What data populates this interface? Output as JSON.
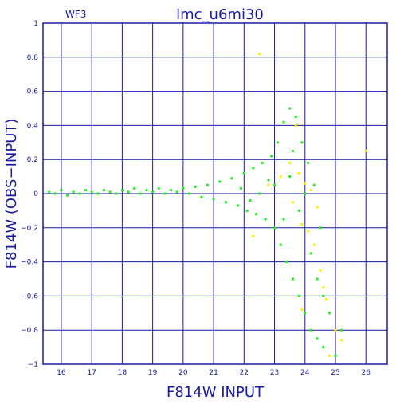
{
  "chart_data": {
    "type": "scatter",
    "title": "lmc_u6mi30",
    "subtitle": "WF3",
    "xlabel": "F814W  INPUT",
    "ylabel": "F814W (OBS−INPUT)",
    "xlim": [
      15.4,
      26.7
    ],
    "ylim": [
      -1,
      1
    ],
    "xticks": [
      "16",
      "17",
      "18",
      "19",
      "20",
      "21",
      "22",
      "23",
      "24",
      "25",
      "26"
    ],
    "yticks": [
      "1",
      "0.8",
      "0.6",
      "0.4",
      "0.2",
      "0",
      "−0.2",
      "−0.4",
      "−0.6",
      "−0.8",
      "−1"
    ],
    "grid": true,
    "colors": {
      "frame": "#1a1aa6",
      "grid": "#1a1aa6",
      "series_primary": "#22ee22",
      "series_secondary": "#ffee00"
    },
    "series": [
      {
        "color": "#22ee22",
        "points": [
          [
            15.6,
            0.01
          ],
          [
            15.8,
            0.0
          ],
          [
            16.0,
            0.02
          ],
          [
            16.2,
            -0.01
          ],
          [
            16.4,
            0.01
          ],
          [
            16.6,
            0.0
          ],
          [
            16.8,
            0.02
          ],
          [
            17.0,
            0.01
          ],
          [
            17.2,
            0.0
          ],
          [
            17.4,
            0.02
          ],
          [
            17.6,
            0.01
          ],
          [
            17.8,
            0.0
          ],
          [
            18.0,
            0.02
          ],
          [
            18.2,
            0.01
          ],
          [
            18.4,
            0.03
          ],
          [
            18.6,
            0.0
          ],
          [
            18.8,
            0.02
          ],
          [
            19.0,
            0.01
          ],
          [
            19.2,
            0.03
          ],
          [
            19.4,
            0.0
          ],
          [
            19.6,
            0.02
          ],
          [
            19.8,
            0.01
          ],
          [
            20.0,
            0.03
          ],
          [
            20.2,
            0.0
          ],
          [
            20.4,
            0.04
          ],
          [
            20.6,
            -0.02
          ],
          [
            20.8,
            0.05
          ],
          [
            21.0,
            -0.03
          ],
          [
            21.2,
            0.07
          ],
          [
            21.4,
            -0.05
          ],
          [
            21.6,
            0.09
          ],
          [
            21.8,
            -0.07
          ],
          [
            22.0,
            0.12
          ],
          [
            22.1,
            -0.1
          ],
          [
            22.3,
            0.15
          ],
          [
            22.4,
            -0.12
          ],
          [
            22.6,
            0.18
          ],
          [
            22.7,
            -0.15
          ],
          [
            22.9,
            0.22
          ],
          [
            23.0,
            -0.2
          ],
          [
            23.1,
            0.3
          ],
          [
            23.2,
            -0.3
          ],
          [
            23.3,
            0.42
          ],
          [
            23.4,
            -0.4
          ],
          [
            23.5,
            0.5
          ],
          [
            23.6,
            -0.5
          ],
          [
            23.7,
            0.45
          ],
          [
            23.8,
            -0.6
          ],
          [
            23.9,
            0.3
          ],
          [
            24.0,
            -0.7
          ],
          [
            24.1,
            0.18
          ],
          [
            24.2,
            -0.8
          ],
          [
            24.3,
            0.05
          ],
          [
            24.4,
            -0.85
          ],
          [
            24.5,
            -0.2
          ],
          [
            24.6,
            -0.9
          ],
          [
            24.8,
            -0.7
          ],
          [
            25.0,
            -0.95
          ],
          [
            25.2,
            -0.8
          ],
          [
            22.5,
            0.0
          ],
          [
            23.0,
            0.05
          ],
          [
            23.5,
            0.1
          ],
          [
            23.8,
            -0.1
          ],
          [
            24.0,
            0.0
          ],
          [
            21.9,
            0.03
          ],
          [
            22.2,
            -0.04
          ],
          [
            22.8,
            0.08
          ],
          [
            23.3,
            -0.15
          ],
          [
            23.6,
            0.25
          ],
          [
            24.2,
            -0.35
          ],
          [
            24.4,
            -0.5
          ],
          [
            24.6,
            -0.6
          ]
        ]
      },
      {
        "color": "#ffee00",
        "points": [
          [
            22.8,
            0.05
          ],
          [
            23.2,
            0.1
          ],
          [
            23.5,
            0.18
          ],
          [
            23.6,
            -0.05
          ],
          [
            23.8,
            0.12
          ],
          [
            23.9,
            -0.18
          ],
          [
            24.0,
            0.06
          ],
          [
            24.1,
            -0.22
          ],
          [
            24.2,
            0.02
          ],
          [
            24.3,
            -0.3
          ],
          [
            24.4,
            -0.08
          ],
          [
            24.5,
            -0.45
          ],
          [
            24.6,
            -0.55
          ],
          [
            24.7,
            -0.62
          ],
          [
            25.0,
            -0.8
          ],
          [
            25.2,
            -0.86
          ],
          [
            22.5,
            0.82
          ],
          [
            26.0,
            0.25
          ],
          [
            23.7,
            0.4
          ],
          [
            24.8,
            -0.95
          ],
          [
            23.9,
            -0.68
          ],
          [
            22.3,
            -0.25
          ]
        ]
      }
    ]
  }
}
